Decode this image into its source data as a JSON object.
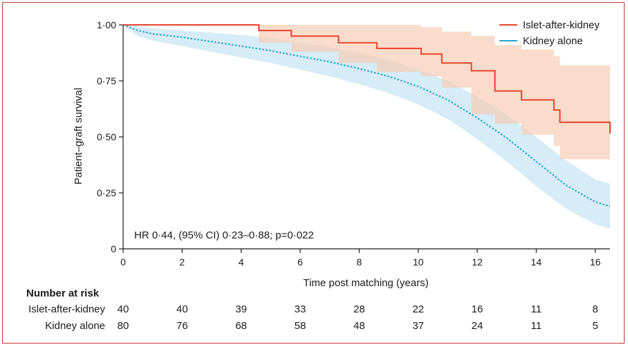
{
  "chart_data": {
    "type": "line",
    "subtype": "kaplan-meier",
    "ylabel": "Patient–graft survival",
    "xlabel": "Time post matching (years)",
    "xlim": [
      0,
      16.5
    ],
    "ylim": [
      0,
      1.0
    ],
    "x_ticks": [
      0,
      2,
      4,
      6,
      8,
      10,
      12,
      14,
      16
    ],
    "y_ticks": [
      0,
      0.25,
      0.5,
      0.75,
      1.0
    ],
    "y_tick_labels": [
      "0",
      "0·25",
      "0·50",
      "0·75",
      "1·00"
    ],
    "legend_position": "top-right",
    "annotation": "HR 0·44, (95% CI) 0·23–0·88; p=0·022",
    "series": [
      {
        "name": "Islet-after-kidney",
        "color": "#e8442c",
        "style": "solid-step",
        "ci_color": "#f7cdb5",
        "x": [
          0,
          4.6,
          5.7,
          7.3,
          8.6,
          10.1,
          10.8,
          11.8,
          12.6,
          13.5,
          14.6,
          14.8,
          16.5
        ],
        "y": [
          1.0,
          0.975,
          0.95,
          0.92,
          0.895,
          0.87,
          0.83,
          0.795,
          0.705,
          0.665,
          0.62,
          0.565,
          0.515
        ],
        "ci_lower": [
          1.0,
          0.92,
          0.88,
          0.83,
          0.79,
          0.77,
          0.72,
          0.6,
          0.56,
          0.51,
          0.46,
          0.4,
          0.345
        ],
        "ci_upper": [
          1.0,
          1.0,
          1.0,
          1.0,
          1.0,
          0.99,
          0.97,
          0.95,
          0.91,
          0.89,
          0.86,
          0.82,
          0.79
        ]
      },
      {
        "name": "Kidney alone",
        "color": "#29a3cc",
        "style": "dotted",
        "ci_color": "#cfe9f4",
        "x": [
          0,
          0.5,
          1,
          2,
          3,
          4,
          5,
          6,
          7,
          8,
          9,
          10,
          11,
          12,
          13,
          14,
          15,
          16,
          16.5
        ],
        "y": [
          1.0,
          0.975,
          0.96,
          0.945,
          0.925,
          0.905,
          0.885,
          0.86,
          0.835,
          0.805,
          0.77,
          0.725,
          0.665,
          0.585,
          0.495,
          0.39,
          0.285,
          0.21,
          0.19
        ],
        "ci_lower": [
          1.0,
          0.95,
          0.93,
          0.905,
          0.88,
          0.855,
          0.83,
          0.8,
          0.77,
          0.735,
          0.695,
          0.645,
          0.58,
          0.49,
          0.39,
          0.28,
          0.18,
          0.11,
          0.09
        ],
        "ci_upper": [
          1.0,
          0.995,
          0.985,
          0.975,
          0.965,
          0.955,
          0.94,
          0.92,
          0.9,
          0.875,
          0.845,
          0.8,
          0.75,
          0.68,
          0.6,
          0.5,
          0.395,
          0.31,
          0.29
        ]
      }
    ]
  },
  "risk_table": {
    "title": "Number at risk",
    "times": [
      0,
      2,
      4,
      6,
      8,
      10,
      12,
      14,
      16
    ],
    "rows": [
      {
        "label": "Islet-after-kidney",
        "values": [
          "40",
          "40",
          "39",
          "33",
          "28",
          "22",
          "16",
          "11",
          "8"
        ]
      },
      {
        "label": "Kidney alone",
        "values": [
          "80",
          "76",
          "68",
          "58",
          "48",
          "37",
          "24",
          "11",
          "5"
        ]
      }
    ]
  }
}
